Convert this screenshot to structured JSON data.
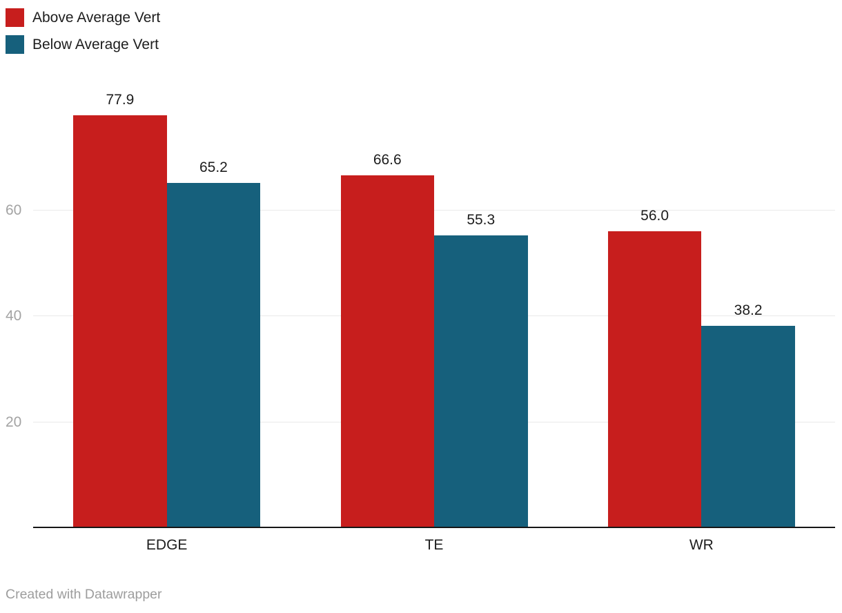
{
  "legend": {
    "items": [
      {
        "label": "Above Average Vert",
        "color": "#c71e1d"
      },
      {
        "label": "Below Average Vert",
        "color": "#16607c"
      }
    ]
  },
  "footer": {
    "credit": "Created with Datawrapper"
  },
  "colors": {
    "above_series": "#c71e1d",
    "below_series": "#16607c",
    "gridline": "#e9e9e9",
    "axis_line": "#161616",
    "tick_label": "#a3a3a3",
    "text": "#1d1d1d",
    "footer_text": "#9d9d9d"
  },
  "chart_data": {
    "type": "bar",
    "title": "",
    "categories": [
      "EDGE",
      "TE",
      "WR"
    ],
    "series": [
      {
        "name": "Above Average Vert",
        "color": "#c71e1d",
        "values": [
          77.9,
          66.6,
          56.0
        ]
      },
      {
        "name": "Below Average Vert",
        "color": "#16607c",
        "values": [
          65.2,
          55.3,
          38.2
        ]
      }
    ],
    "value_labels": {
      "shown": true,
      "decimals": 1,
      "values_as_shown": [
        [
          "77.9",
          "66.6",
          "56.0"
        ],
        [
          "65.2",
          "55.3",
          "38.2"
        ]
      ]
    },
    "xlabel": "",
    "ylabel": "",
    "yticks": [
      20,
      40,
      60
    ],
    "ylim": [
      0,
      85
    ],
    "grid": true,
    "legend_position": "top-left",
    "attribution": "Created with Datawrapper"
  }
}
